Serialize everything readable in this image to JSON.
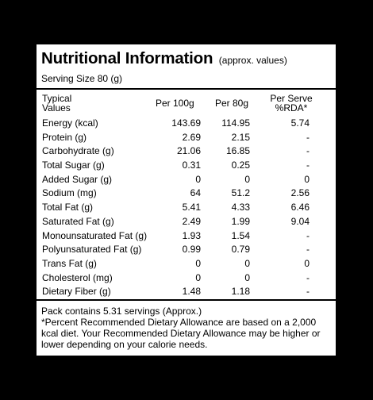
{
  "label": {
    "title": "Nutritional Information",
    "title_note": "(approx. values)",
    "serving_size": "Serving Size 80 (g)",
    "headers": {
      "typical_line1": "Typical",
      "typical_line2": "Values",
      "per_100g": "Per 100g",
      "per_80g": "Per 80g",
      "per_serve_line1": "Per Serve",
      "per_serve_line2": "%RDA*"
    },
    "rows": [
      {
        "name": "Energy (kcal)",
        "per_100g": "143.69",
        "per_80g": "114.95",
        "rda": "5.74"
      },
      {
        "name": "Protein (g)",
        "per_100g": "2.69",
        "per_80g": "2.15",
        "rda": "-"
      },
      {
        "name": "Carbohydrate (g)",
        "per_100g": "21.06",
        "per_80g": "16.85",
        "rda": "-"
      },
      {
        "name": "Total Sugar (g)",
        "per_100g": "0.31",
        "per_80g": "0.25",
        "rda": "-"
      },
      {
        "name": "Added Sugar (g)",
        "per_100g": "0",
        "per_80g": "0",
        "rda": "0"
      },
      {
        "name": "Sodium (mg)",
        "per_100g": "64",
        "per_80g": "51.2",
        "rda": "2.56"
      },
      {
        "name": "Total Fat (g)",
        "per_100g": "5.41",
        "per_80g": "4.33",
        "rda": "6.46"
      },
      {
        "name": "Saturated Fat (g)",
        "per_100g": "2.49",
        "per_80g": "1.99",
        "rda": "9.04"
      },
      {
        "name": "Monounsaturated Fat (g)",
        "per_100g": "1.93",
        "per_80g": "1.54",
        "rda": "-"
      },
      {
        "name": "Polyunsaturated Fat (g)",
        "per_100g": "0.99",
        "per_80g": "0.79",
        "rda": "-"
      },
      {
        "name": "Trans Fat (g)",
        "per_100g": "0",
        "per_80g": "0",
        "rda": "0"
      },
      {
        "name": "Cholesterol (mg)",
        "per_100g": "0",
        "per_80g": "0",
        "rda": "-"
      },
      {
        "name": "Dietary Fiber (g)",
        "per_100g": "1.48",
        "per_80g": "1.18",
        "rda": "-"
      }
    ],
    "footer": {
      "servings": "Pack contains 5.31 servings (Approx.)",
      "note": "*Percent Recommended Dietary Allowance are based on a 2,000 kcal diet. Your Recommended Dietary Allowance may be higher or lower depending on your calorie needs."
    }
  }
}
